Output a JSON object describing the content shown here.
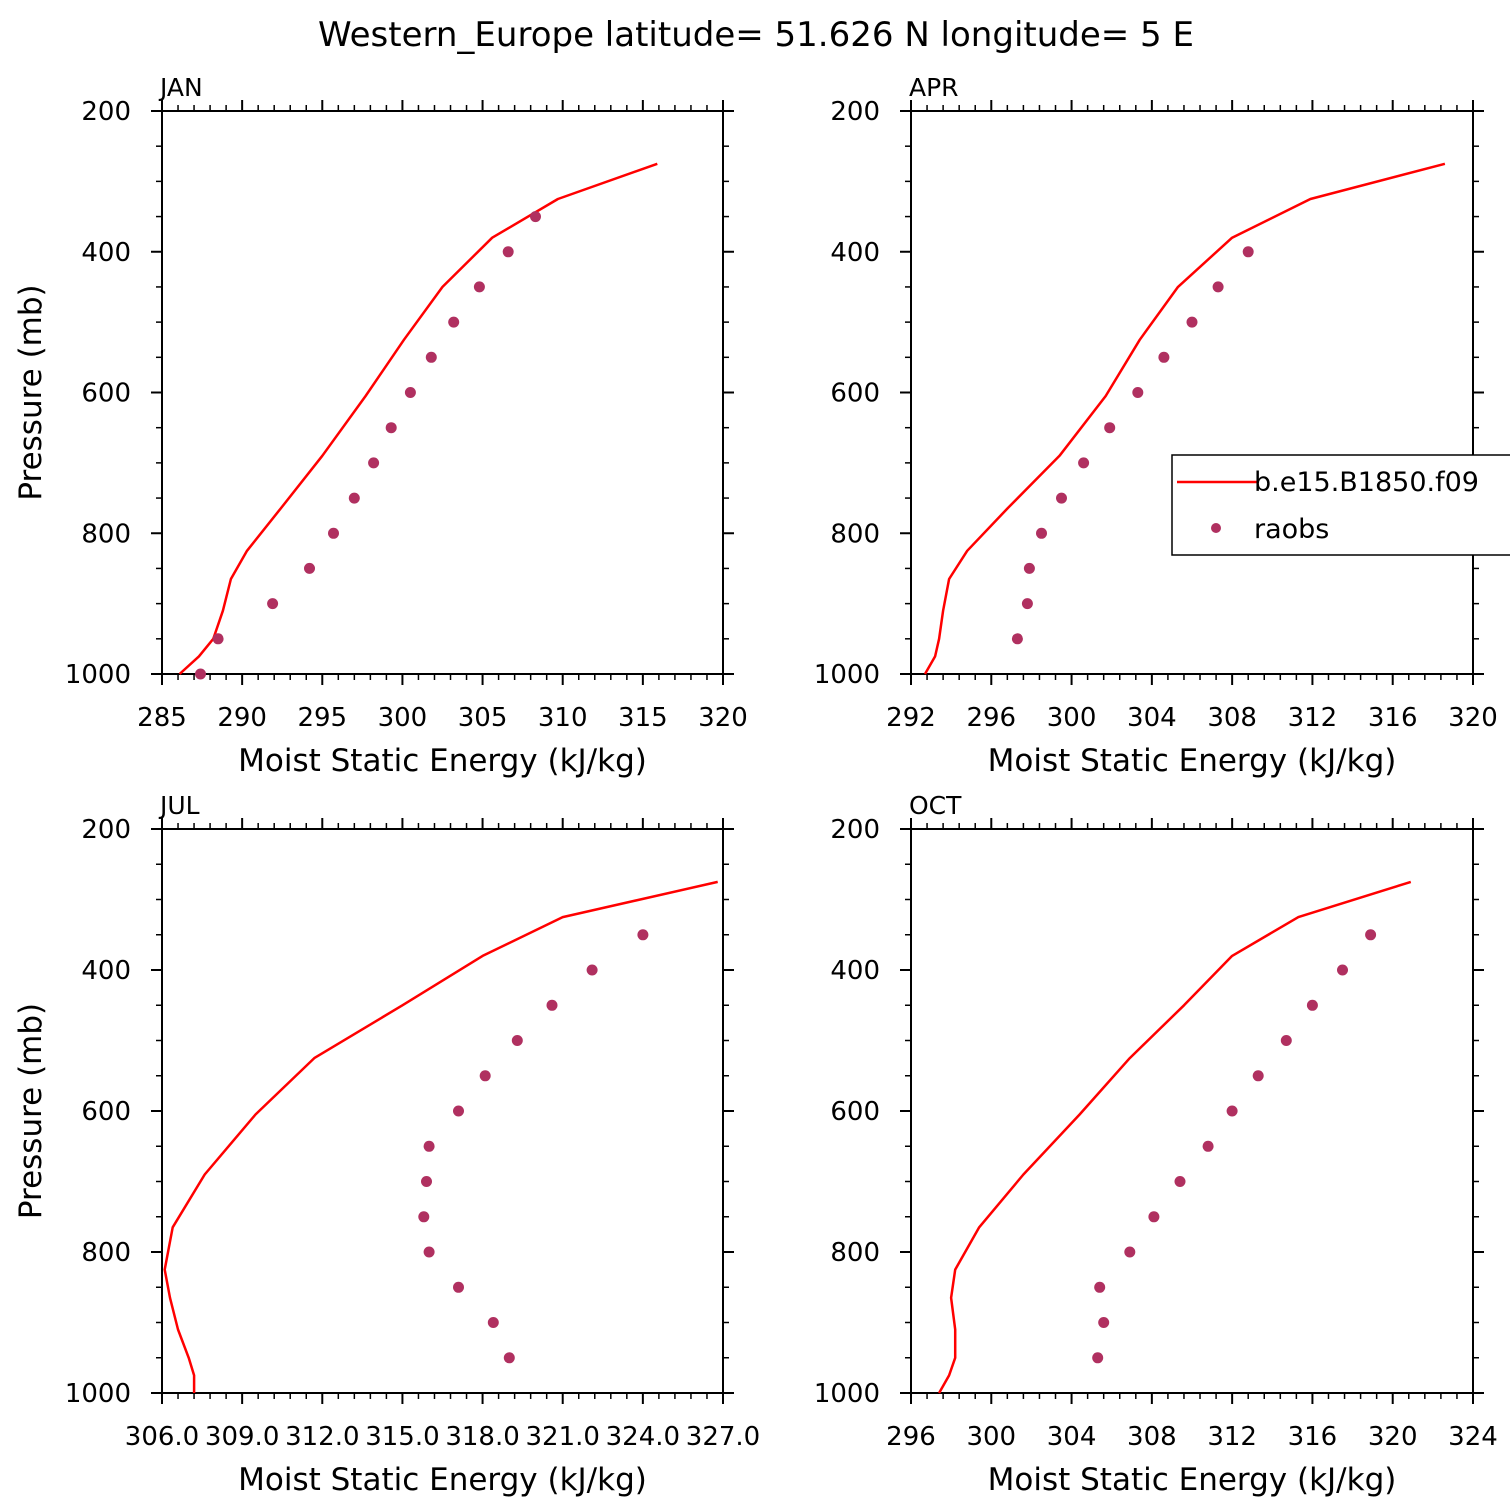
{
  "figure": {
    "title": "Western_Europe  latitude= 51.626 N longitude= 5 E",
    "colors": {
      "model": "#ff0000",
      "obs": "#b03060",
      "frame": "#000000"
    }
  },
  "legend": {
    "entries": [
      {
        "label": "b.e15.B1850.f09",
        "kind": "line",
        "color": "#ff0000"
      },
      {
        "label": "raobs",
        "kind": "marker",
        "color": "#b03060"
      }
    ]
  },
  "chart_data": [
    {
      "type": "line",
      "title": "JAN",
      "xlabel": "Moist Static Energy (kJ/kg)",
      "ylabel": "Pressure (mb)",
      "xlim": [
        285,
        320
      ],
      "ylim": [
        1000,
        200
      ],
      "xticks": [
        285,
        290,
        295,
        300,
        305,
        310,
        315,
        320
      ],
      "xticklabels": [
        "285",
        "290",
        "295",
        "300",
        "305",
        "310",
        "315",
        "320"
      ],
      "yticks": [
        200,
        400,
        600,
        800,
        1000
      ],
      "yticklabels": [
        "200",
        "400",
        "600",
        "800",
        "1000"
      ],
      "series": [
        {
          "name": "b.e15.B1850.f09",
          "kind": "line",
          "x": [
            286.1,
            287.3,
            288.2,
            288.8,
            289.3,
            290.3,
            292.4,
            295.0,
            297.7,
            300.1,
            302.5,
            305.6,
            309.7,
            315.9
          ],
          "y": [
            1000,
            975,
            950,
            910,
            865,
            825,
            765,
            690,
            605,
            525,
            450,
            380,
            325,
            275
          ]
        },
        {
          "name": "raobs",
          "kind": "scatter",
          "x": [
            287.4,
            288.5,
            291.9,
            294.2,
            295.7,
            297.0,
            298.2,
            299.3,
            300.5,
            301.8,
            303.2,
            304.8,
            306.6,
            308.3
          ],
          "y": [
            1000,
            950,
            900,
            850,
            800,
            750,
            700,
            650,
            600,
            550,
            500,
            450,
            400,
            350
          ]
        }
      ]
    },
    {
      "type": "line",
      "title": "APR",
      "xlabel": "Moist Static Energy (kJ/kg)",
      "ylabel": "",
      "xlim": [
        292,
        320
      ],
      "ylim": [
        1000,
        200
      ],
      "xticks": [
        292,
        296,
        300,
        304,
        308,
        312,
        316,
        320
      ],
      "xticklabels": [
        "292",
        "296",
        "300",
        "304",
        "308",
        "312",
        "316",
        "320"
      ],
      "yticks": [
        200,
        400,
        600,
        800,
        1000
      ],
      "yticklabels": [
        "200",
        "400",
        "600",
        "800",
        "1000"
      ],
      "series": [
        {
          "name": "b.e15.B1850.f09",
          "kind": "line",
          "x": [
            292.7,
            293.2,
            293.4,
            293.6,
            293.9,
            294.8,
            296.8,
            299.4,
            301.7,
            303.4,
            305.3,
            308.0,
            311.9,
            318.6
          ],
          "y": [
            1000,
            975,
            950,
            910,
            865,
            825,
            765,
            690,
            605,
            525,
            450,
            380,
            325,
            275
          ]
        },
        {
          "name": "raobs",
          "kind": "scatter",
          "x": [
            297.3,
            297.8,
            297.9,
            298.5,
            299.5,
            300.6,
            301.9,
            303.3,
            304.6,
            306.0,
            307.3,
            308.8
          ],
          "y": [
            950,
            900,
            850,
            800,
            750,
            700,
            650,
            600,
            550,
            500,
            450,
            400
          ]
        }
      ]
    },
    {
      "type": "line",
      "title": "JUL",
      "xlabel": "Moist Static Energy (kJ/kg)",
      "ylabel": "Pressure (mb)",
      "xlim": [
        306,
        327
      ],
      "ylim": [
        1000,
        200
      ],
      "xticks": [
        306,
        309,
        312,
        315,
        318,
        321,
        324,
        327
      ],
      "xticklabels": [
        "306.0",
        "309.0",
        "312.0",
        "315.0",
        "318.0",
        "321.0",
        "324.0",
        "327.0"
      ],
      "yticks": [
        200,
        400,
        600,
        800,
        1000
      ],
      "yticklabels": [
        "200",
        "400",
        "600",
        "800",
        "1000"
      ],
      "series": [
        {
          "name": "b.e15.B1850.f09",
          "kind": "line",
          "x": [
            307.2,
            307.2,
            307.0,
            306.6,
            306.3,
            306.1,
            306.4,
            307.6,
            309.5,
            311.7,
            315.0,
            318.0,
            321.0,
            326.8
          ],
          "y": [
            1000,
            975,
            950,
            910,
            865,
            825,
            765,
            690,
            605,
            525,
            450,
            380,
            325,
            275
          ]
        },
        {
          "name": "raobs",
          "kind": "scatter",
          "x": [
            319.0,
            318.4,
            317.1,
            316.0,
            315.8,
            315.9,
            316.0,
            317.1,
            318.1,
            319.3,
            320.6,
            322.1,
            324.0
          ],
          "y": [
            950,
            900,
            850,
            800,
            750,
            700,
            650,
            600,
            550,
            500,
            450,
            400,
            350
          ]
        }
      ]
    },
    {
      "type": "line",
      "title": "OCT",
      "xlabel": "Moist Static Energy (kJ/kg)",
      "ylabel": "",
      "xlim": [
        296,
        324
      ],
      "ylim": [
        1000,
        200
      ],
      "xticks": [
        296,
        300,
        304,
        308,
        312,
        316,
        320,
        324
      ],
      "xticklabels": [
        "296",
        "300",
        "304",
        "308",
        "312",
        "316",
        "320",
        "324"
      ],
      "yticks": [
        200,
        400,
        600,
        800,
        1000
      ],
      "yticklabels": [
        "200",
        "400",
        "600",
        "800",
        "1000"
      ],
      "series": [
        {
          "name": "b.e15.B1850.f09",
          "kind": "line",
          "x": [
            297.4,
            297.9,
            298.2,
            298.2,
            298.0,
            298.2,
            299.4,
            301.6,
            304.4,
            306.9,
            309.6,
            312.0,
            315.3,
            320.9
          ],
          "y": [
            1000,
            975,
            950,
            910,
            865,
            825,
            765,
            690,
            605,
            525,
            450,
            380,
            325,
            275
          ]
        },
        {
          "name": "raobs",
          "kind": "scatter",
          "x": [
            305.3,
            305.6,
            305.4,
            306.9,
            308.1,
            309.4,
            310.8,
            312.0,
            313.3,
            314.7,
            316.0,
            317.5,
            318.9
          ],
          "y": [
            950,
            900,
            850,
            800,
            750,
            700,
            650,
            600,
            550,
            500,
            450,
            400,
            350
          ]
        }
      ]
    }
  ]
}
